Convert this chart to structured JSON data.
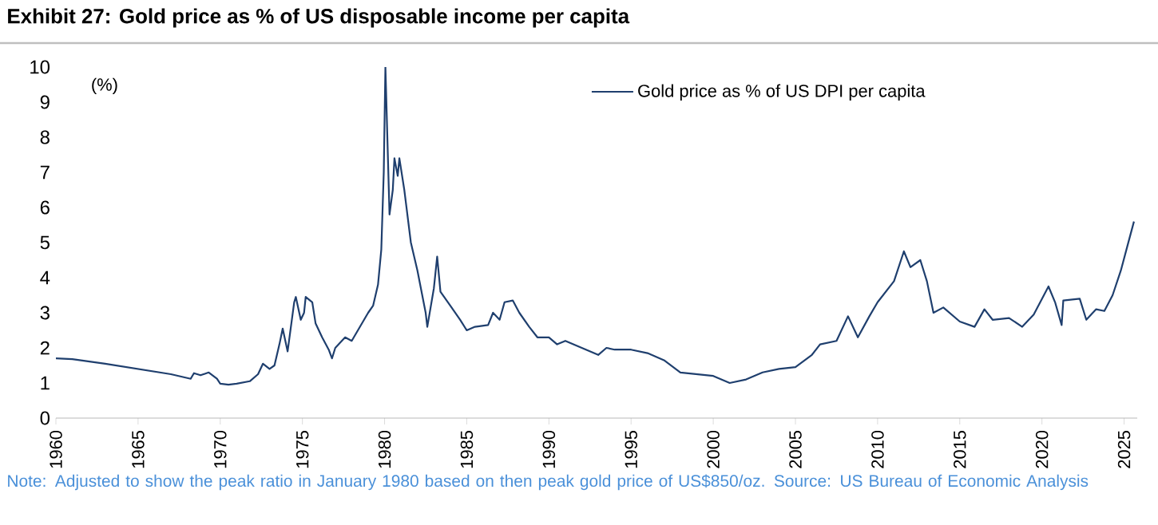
{
  "chart_data": {
    "type": "line",
    "title": "Exhibit 27: Gold price as % of US disposable income per capita",
    "ylabel": "(%)",
    "annotations": [
      "Note: Adjusted to show the peak ratio in January 1980 based on then peak gold price of US$850/oz. Source: US Bureau of Economic Analysis"
    ],
    "x": [
      1960,
      1961,
      1963,
      1965,
      1967,
      1968.2,
      1968.4,
      1968.8,
      1969.3,
      1969.8,
      1970,
      1970.5,
      1971,
      1971.8,
      1972.3,
      1972.6,
      1973,
      1973.3,
      1973.6,
      1973.8,
      1974.1,
      1974.5,
      1974.6,
      1974.9,
      1975.1,
      1975.2,
      1975.6,
      1975.8,
      1976.2,
      1976.6,
      1976.8,
      1977,
      1977.6,
      1978,
      1978.5,
      1979,
      1979.3,
      1979.6,
      1979.8,
      1979.95,
      1980.05,
      1980.3,
      1980.5,
      1980.6,
      1980.8,
      1980.9,
      1981.2,
      1981.6,
      1982,
      1982.5,
      1982.6,
      1983,
      1983.2,
      1983.4,
      1984,
      1984.6,
      1985,
      1985.5,
      1986.3,
      1986.6,
      1987,
      1987.3,
      1987.8,
      1988.2,
      1988.8,
      1989.3,
      1990,
      1990.5,
      1991,
      1992,
      1993,
      1993.5,
      1994,
      1995,
      1996,
      1997,
      1998,
      1999,
      2000,
      2001,
      2002,
      2003,
      2004,
      2005,
      2006,
      2006.5,
      2007.5,
      2008.2,
      2008.8,
      2009.5,
      2010,
      2011,
      2011.6,
      2012,
      2012.6,
      2013,
      2013.4,
      2014,
      2015,
      2015.9,
      2016.5,
      2017,
      2018,
      2018.8,
      2019.5,
      2020.4,
      2020.8,
      2021.2,
      2021.3,
      2022.3,
      2022.7,
      2023.3,
      2023.8,
      2024.3,
      2024.8,
      2025.2,
      2025.6
    ],
    "series": [
      {
        "name": "Gold price as % of US DPI per capita",
        "color": "#1f3f6e",
        "values": [
          1.7,
          1.68,
          1.55,
          1.4,
          1.25,
          1.12,
          1.28,
          1.22,
          1.3,
          1.12,
          0.98,
          0.95,
          0.98,
          1.05,
          1.25,
          1.55,
          1.4,
          1.5,
          2.1,
          2.55,
          1.9,
          3.3,
          3.45,
          2.8,
          3.0,
          3.45,
          3.3,
          2.7,
          2.3,
          1.95,
          1.7,
          2.0,
          2.3,
          2.2,
          2.6,
          3.0,
          3.2,
          3.8,
          4.8,
          7.0,
          10.0,
          5.8,
          6.5,
          7.4,
          6.9,
          7.4,
          6.5,
          5.0,
          4.2,
          3.0,
          2.6,
          3.7,
          4.6,
          3.6,
          3.2,
          2.8,
          2.5,
          2.6,
          2.65,
          3.0,
          2.8,
          3.3,
          3.35,
          3.0,
          2.6,
          2.3,
          2.3,
          2.1,
          2.2,
          2.0,
          1.8,
          2.0,
          1.95,
          1.95,
          1.85,
          1.65,
          1.3,
          1.25,
          1.2,
          1.0,
          1.1,
          1.3,
          1.4,
          1.45,
          1.8,
          2.1,
          2.2,
          2.9,
          2.3,
          2.9,
          3.3,
          3.9,
          4.75,
          4.3,
          4.5,
          3.9,
          3.0,
          3.15,
          2.75,
          2.6,
          3.1,
          2.8,
          2.85,
          2.6,
          2.95,
          3.75,
          3.3,
          2.65,
          3.35,
          3.4,
          2.8,
          3.1,
          3.05,
          3.5,
          4.2,
          4.9,
          5.6
        ]
      }
    ],
    "xlim": [
      1960,
      2025.8
    ],
    "ylim": [
      0,
      10
    ],
    "xticks": [
      1960,
      1965,
      1970,
      1975,
      1980,
      1985,
      1990,
      1995,
      2000,
      2005,
      2010,
      2015,
      2020,
      2025
    ],
    "yticks": [
      0,
      1,
      2,
      3,
      4,
      5,
      6,
      7,
      8,
      9,
      10
    ],
    "legend": "top right",
    "marker": "none",
    "line_style": "solid"
  }
}
